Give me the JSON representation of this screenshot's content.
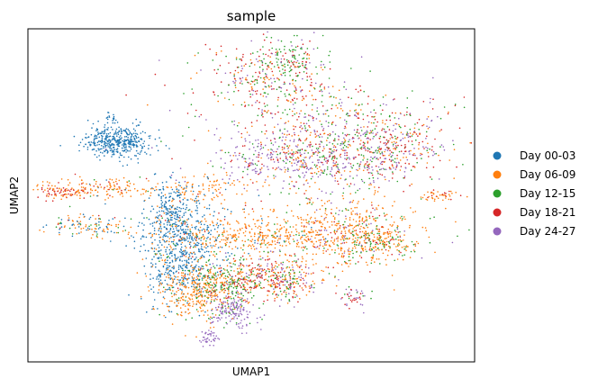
{
  "chart_data": {
    "type": "scatter",
    "title": "sample",
    "xlabel": "UMAP1",
    "ylabel": "UMAP2",
    "xticks": [],
    "yticks": [],
    "grid": false,
    "legend_position": "right",
    "series": [
      {
        "name": "Day 00-03",
        "color": "#1f77b4"
      },
      {
        "name": "Day 06-09",
        "color": "#ff7f0e"
      },
      {
        "name": "Day 12-15",
        "color": "#2ca02c"
      },
      {
        "name": "Day 18-21",
        "color": "#d62728"
      },
      {
        "name": "Day 24-27",
        "color": "#9467bd"
      }
    ]
  }
}
